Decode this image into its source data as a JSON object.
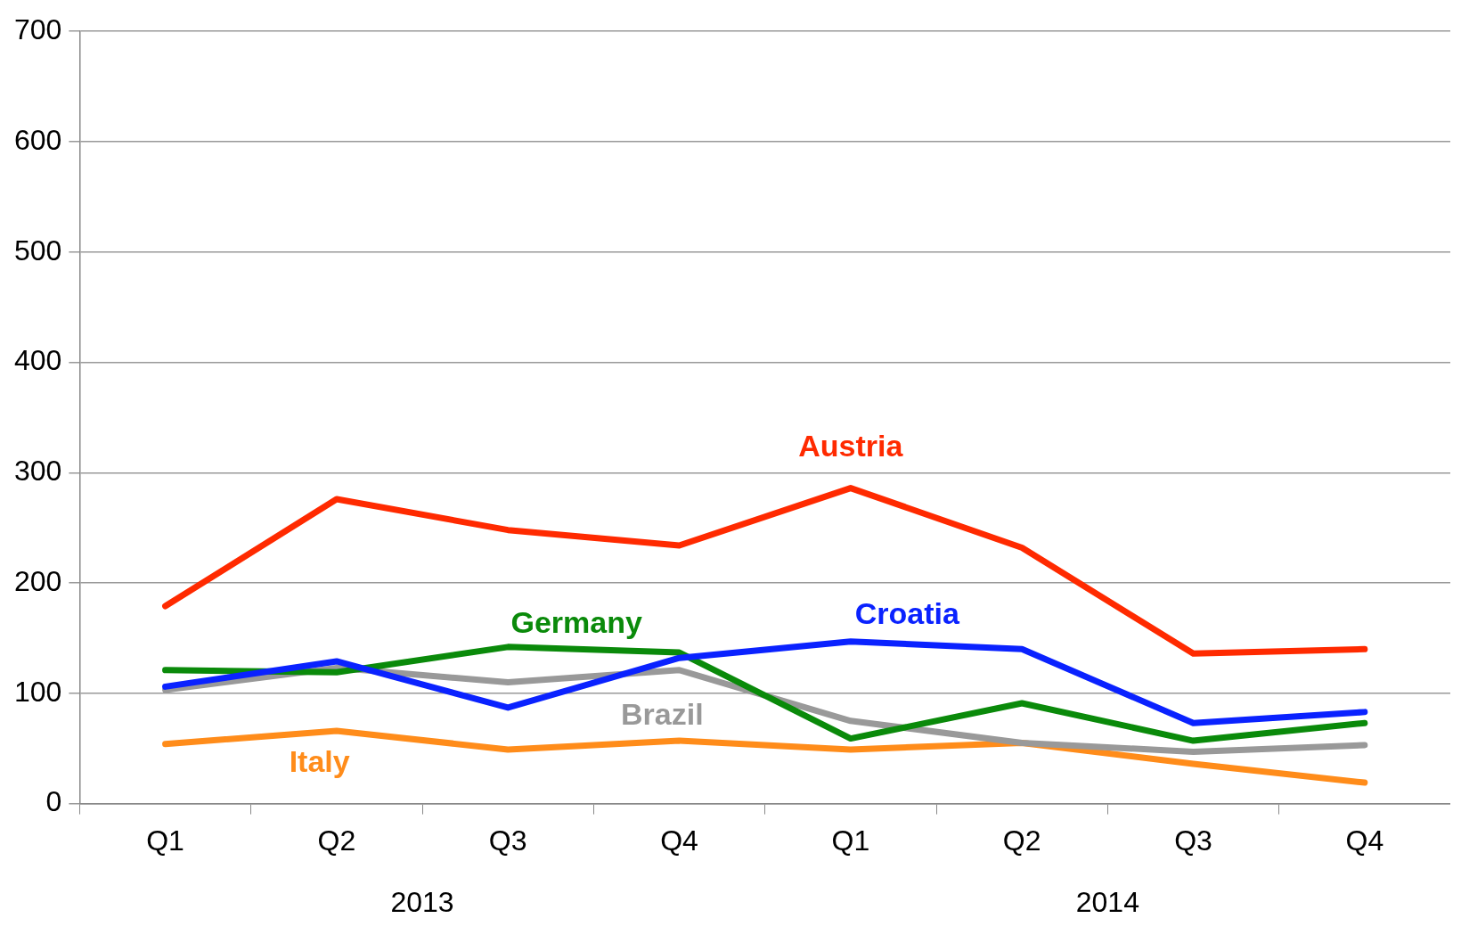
{
  "chart_data": {
    "type": "line",
    "categories": [
      "Q1",
      "Q2",
      "Q3",
      "Q4",
      "Q1",
      "Q2",
      "Q3",
      "Q4"
    ],
    "ylim": [
      0,
      700
    ],
    "yticks": [
      0,
      100,
      200,
      300,
      400,
      500,
      600,
      700
    ],
    "grid": "y",
    "legend": false,
    "marker": "none",
    "annotations": [
      "2013",
      "2014"
    ],
    "series": [
      {
        "name": "Austria",
        "color": "#ff2a00",
        "values": [
          179,
          276,
          248,
          234,
          286,
          232,
          136,
          140
        ]
      },
      {
        "name": "Croatia",
        "color": "#0a22ff",
        "values": [
          106,
          129,
          87,
          132,
          147,
          140,
          73,
          83
        ]
      },
      {
        "name": "Germany",
        "color": "#0a8a0a",
        "values": [
          121,
          119,
          142,
          137,
          59,
          91,
          57,
          73
        ]
      },
      {
        "name": "Brazil",
        "color": "#999999",
        "values": [
          103,
          123,
          110,
          121,
          75,
          55,
          47,
          53
        ]
      },
      {
        "name": "Italy",
        "color": "#ff8c1a",
        "values": [
          54,
          66,
          49,
          57,
          49,
          55,
          36,
          19
        ]
      }
    ]
  }
}
